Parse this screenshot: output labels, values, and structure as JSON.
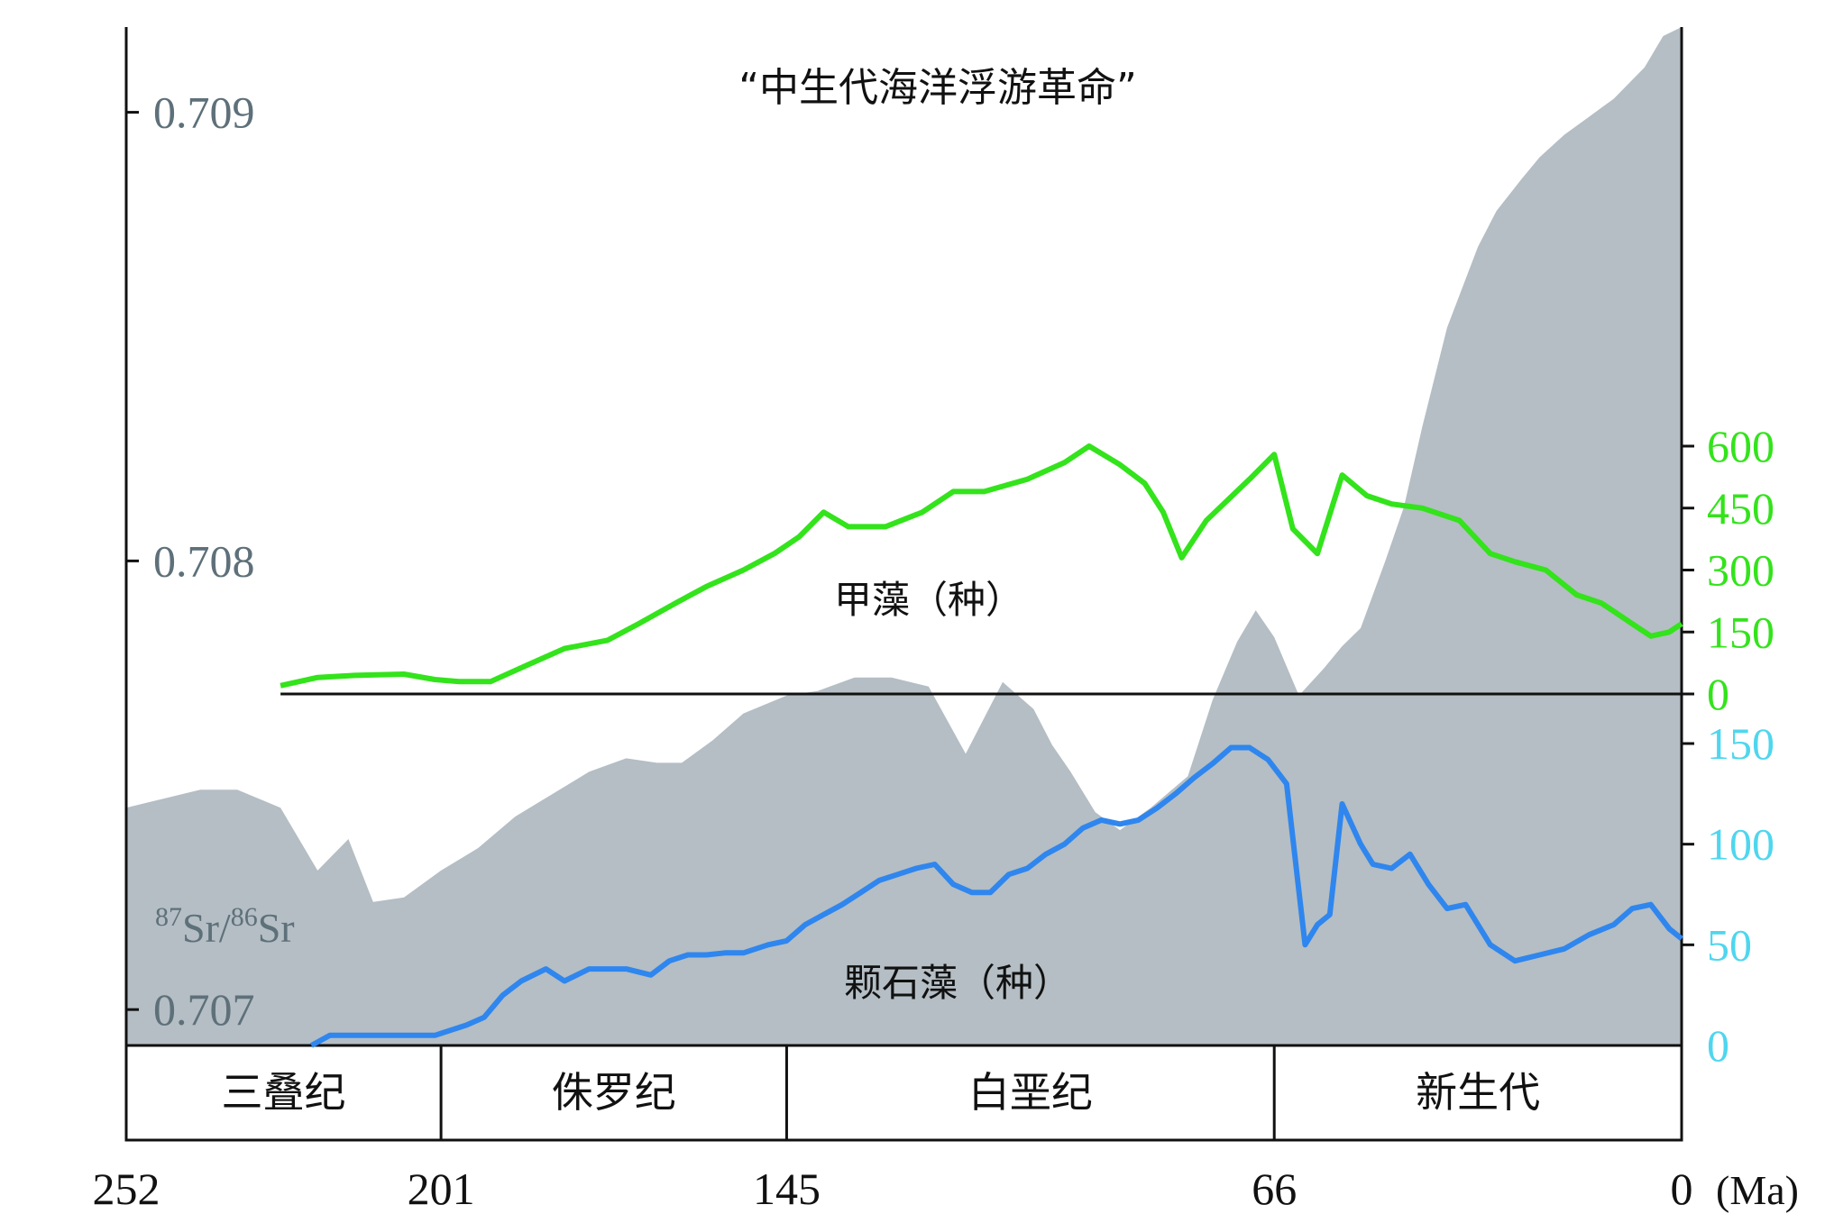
{
  "chart_data": {
    "type": "area",
    "title": "“中生代海洋浮游革命”",
    "x_axis": {
      "unit": "(Ma)",
      "ticks": [
        "252",
        "201",
        "145",
        "66",
        "0"
      ],
      "tick_values": [
        252,
        201,
        145,
        66,
        0
      ],
      "range": [
        252,
        0
      ]
    },
    "periods": [
      {
        "name": "三叠纪",
        "from": 252,
        "to": 201
      },
      {
        "name": "侏罗纪",
        "from": 201,
        "to": 145
      },
      {
        "name": "白垩纪",
        "from": 145,
        "to": 66
      },
      {
        "name": "新生代",
        "from": 66,
        "to": 0
      }
    ],
    "strontium": {
      "label_sup1": "87",
      "label_base1": "Sr/",
      "label_sup2": "86",
      "label_base2": "Sr",
      "ticks": [
        "0.709",
        "0.708",
        "0.707"
      ],
      "tick_values": [
        0.709,
        0.708,
        0.707
      ],
      "range": [
        0.70692,
        0.70919
      ],
      "color": "#b4bec4",
      "x": [
        252,
        246,
        240,
        234,
        227,
        221,
        216,
        212,
        207,
        201,
        195,
        189,
        183,
        177,
        171,
        166,
        162,
        157,
        152,
        145,
        140,
        134,
        128,
        122,
        116,
        110,
        105,
        102,
        99,
        95,
        91,
        86,
        80,
        76,
        72,
        69,
        66,
        62,
        58,
        55,
        52,
        48,
        45,
        42,
        38,
        33,
        30,
        26,
        23,
        19,
        15,
        11,
        6,
        3,
        0
      ],
      "y": [
        0.70745,
        0.70747,
        0.70749,
        0.70749,
        0.70745,
        0.70731,
        0.70738,
        0.70724,
        0.70725,
        0.70731,
        0.70736,
        0.70743,
        0.70748,
        0.70753,
        0.70756,
        0.70755,
        0.70755,
        0.7076,
        0.70766,
        0.7077,
        0.70771,
        0.70774,
        0.70774,
        0.70772,
        0.70757,
        0.70773,
        0.70767,
        0.70759,
        0.70753,
        0.70744,
        0.7074,
        0.70745,
        0.70752,
        0.70769,
        0.70782,
        0.70789,
        0.70783,
        0.7077,
        0.70776,
        0.70781,
        0.70785,
        0.708,
        0.70812,
        0.7083,
        0.70852,
        0.7087,
        0.70878,
        0.70885,
        0.7089,
        0.70895,
        0.70899,
        0.70903,
        0.7091,
        0.70917,
        0.70919
      ]
    },
    "series": [
      {
        "name": "甲藻（种）",
        "color": "#33e31b",
        "axis": {
          "ticks": [
            "600",
            "450",
            "300",
            "150",
            "0"
          ],
          "tick_values": [
            600,
            450,
            300,
            150,
            0
          ],
          "range": [
            0,
            600
          ]
        },
        "x": [
          227,
          221,
          215,
          207,
          202,
          198,
          193,
          187,
          181,
          174,
          169,
          163,
          158,
          152,
          147,
          143,
          139,
          135,
          129,
          123,
          118,
          113,
          106,
          100,
          96,
          91,
          87,
          84,
          81,
          77,
          70,
          66,
          63,
          59,
          55,
          51,
          47,
          42,
          36,
          31,
          27,
          22,
          17,
          13,
          11,
          8,
          5,
          2,
          0
        ],
        "y": [
          20,
          40,
          45,
          48,
          35,
          30,
          30,
          70,
          110,
          130,
          170,
          220,
          260,
          300,
          340,
          380,
          440,
          405,
          405,
          440,
          490,
          490,
          520,
          560,
          600,
          555,
          510,
          440,
          330,
          420,
          520,
          580,
          400,
          340,
          530,
          480,
          460,
          450,
          420,
          340,
          320,
          300,
          240,
          220,
          200,
          170,
          140,
          150,
          170
        ]
      },
      {
        "name": "颗石藻（种）",
        "color": "#2f86ee",
        "axis": {
          "ticks": [
            "150",
            "100",
            "50",
            "0"
          ],
          "tick_values": [
            150,
            100,
            50,
            0
          ],
          "range": [
            0,
            150
          ]
        },
        "x": [
          222,
          219,
          214,
          208,
          202,
          197,
          194,
          191,
          188,
          184,
          181,
          177,
          174,
          171,
          167,
          164,
          161,
          158,
          155,
          152,
          148,
          145,
          142,
          139,
          136,
          133,
          130,
          127,
          124,
          121,
          118,
          115,
          112,
          109,
          106,
          103,
          100,
          97,
          94,
          91,
          88,
          85,
          82,
          79,
          76,
          73,
          70,
          67,
          64,
          61,
          59,
          57,
          55,
          52,
          50,
          47,
          44,
          41,
          38,
          35,
          31,
          27,
          23,
          19,
          15,
          11,
          8,
          5,
          2,
          0
        ],
        "y": [
          0,
          5,
          5,
          5,
          5,
          10,
          14,
          25,
          32,
          38,
          32,
          38,
          38,
          38,
          35,
          42,
          45,
          45,
          46,
          46,
          50,
          52,
          60,
          65,
          70,
          76,
          82,
          85,
          88,
          90,
          80,
          76,
          76,
          85,
          88,
          95,
          100,
          108,
          112,
          110,
          112,
          118,
          125,
          133,
          140,
          148,
          148,
          142,
          130,
          50,
          60,
          65,
          120,
          100,
          90,
          88,
          95,
          80,
          68,
          70,
          50,
          42,
          45,
          48,
          55,
          60,
          68,
          70,
          58,
          53
        ]
      }
    ],
    "zero_line": {
      "from": 227,
      "to": 0
    }
  }
}
